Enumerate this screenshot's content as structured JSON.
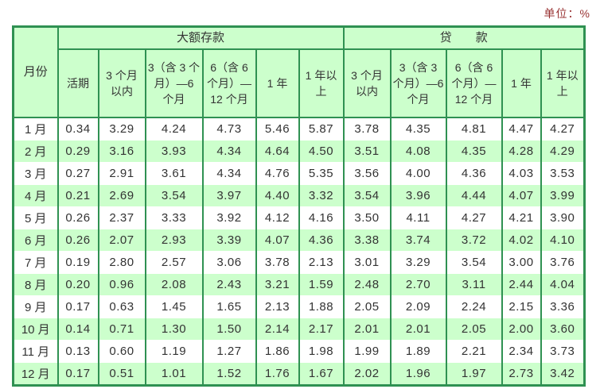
{
  "unit_label": "单位：%",
  "table": {
    "month_column_label": "月份",
    "deposit_group_label": "大额存款",
    "loan_group_label": "贷　　款",
    "deposit_columns": [
      "活期",
      "3 个月以内",
      "3（含 3 个月）—6 个月",
      "6（含 6 个月）—12 个月",
      "1 年",
      "1 年以上"
    ],
    "loan_columns": [
      "3 个月以内",
      "3（含 3 个月）—6 个月",
      "6（含 6 个月）—12 个月",
      "1 年",
      "1 年以上"
    ],
    "rows": [
      {
        "month": "1 月",
        "values": [
          "0.34",
          "3.29",
          "4.24",
          "4.73",
          "5.46",
          "5.87",
          "3.78",
          "4.35",
          "4.81",
          "4.47",
          "4.27"
        ]
      },
      {
        "month": "2 月",
        "values": [
          "0.29",
          "3.16",
          "3.93",
          "4.34",
          "4.64",
          "4.50",
          "3.51",
          "4.08",
          "4.35",
          "4.28",
          "4.29"
        ]
      },
      {
        "month": "3 月",
        "values": [
          "0.27",
          "2.91",
          "3.61",
          "4.34",
          "4.76",
          "5.35",
          "3.56",
          "4.00",
          "4.36",
          "4.03",
          "3.53"
        ]
      },
      {
        "month": "4 月",
        "values": [
          "0.21",
          "2.69",
          "3.54",
          "3.97",
          "4.40",
          "3.32",
          "3.54",
          "3.96",
          "4.44",
          "4.07",
          "3.99"
        ]
      },
      {
        "month": "5 月",
        "values": [
          "0.26",
          "2.37",
          "3.33",
          "3.92",
          "4.12",
          "4.16",
          "3.50",
          "4.11",
          "4.27",
          "4.21",
          "3.90"
        ]
      },
      {
        "month": "6 月",
        "values": [
          "0.26",
          "2.07",
          "2.93",
          "3.39",
          "4.07",
          "4.36",
          "3.38",
          "3.74",
          "3.72",
          "4.02",
          "4.10"
        ]
      },
      {
        "month": "7 月",
        "values": [
          "0.19",
          "2.80",
          "2.57",
          "3.06",
          "3.78",
          "2.13",
          "3.01",
          "3.29",
          "3.54",
          "3.00",
          "3.76"
        ]
      },
      {
        "month": "8 月",
        "values": [
          "0.20",
          "0.96",
          "2.08",
          "2.43",
          "3.21",
          "1.59",
          "2.48",
          "2.70",
          "3.11",
          "2.44",
          "4.04"
        ]
      },
      {
        "month": "9 月",
        "values": [
          "0.17",
          "0.63",
          "1.45",
          "1.65",
          "2.13",
          "1.88",
          "2.05",
          "2.09",
          "2.24",
          "2.15",
          "3.36"
        ]
      },
      {
        "month": "10 月",
        "values": [
          "0.14",
          "0.71",
          "1.30",
          "1.50",
          "2.14",
          "2.17",
          "2.01",
          "2.01",
          "2.05",
          "2.00",
          "3.60"
        ]
      },
      {
        "month": "11 月",
        "values": [
          "0.13",
          "0.60",
          "1.19",
          "1.27",
          "1.86",
          "1.98",
          "1.99",
          "1.89",
          "2.21",
          "2.34",
          "3.73"
        ]
      },
      {
        "month": "12 月",
        "values": [
          "0.17",
          "0.51",
          "1.01",
          "1.52",
          "1.76",
          "1.67",
          "2.02",
          "1.96",
          "1.97",
          "2.73",
          "3.42"
        ]
      }
    ],
    "colors": {
      "border_green": "#2f9152",
      "fill_green": "#ccffcc",
      "unit_text": "#993333",
      "cell_text": "#333333"
    }
  }
}
